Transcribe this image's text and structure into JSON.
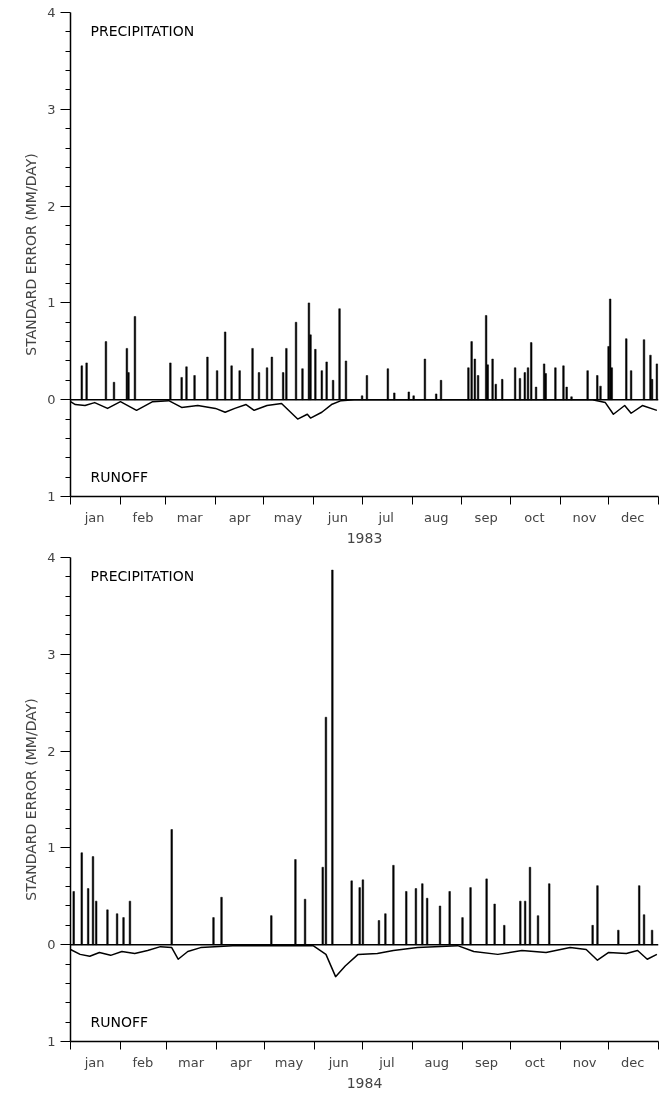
{
  "chart_data": [
    {
      "type": "bar",
      "xlabel": "1983",
      "ylabel": "STANDARD ERROR (MM/DAY)",
      "xlim": [
        "1983-01-01",
        "1984-01-01"
      ],
      "ylim": [
        -1,
        4
      ],
      "xticks": [
        {
          "value": "1983-01-01",
          "label": null
        },
        {
          "value": "1983-01-16",
          "label": "jan"
        },
        {
          "value": "1983-02-01",
          "label": null
        },
        {
          "value": "1983-02-15",
          "label": "feb"
        },
        {
          "value": "1983-03-01",
          "label": null
        },
        {
          "value": "1983-03-16",
          "label": "mar"
        },
        {
          "value": "1983-04-01",
          "label": null
        },
        {
          "value": "1983-04-16",
          "label": "apr"
        },
        {
          "value": "1983-05-01",
          "label": null
        },
        {
          "value": "1983-05-16",
          "label": "may"
        },
        {
          "value": "1983-06-01",
          "label": null
        },
        {
          "value": "1983-06-16",
          "label": "jun"
        },
        {
          "value": "1983-07-01",
          "label": null
        },
        {
          "value": "1983-07-16",
          "label": "jul"
        },
        {
          "value": "1983-08-01",
          "label": null
        },
        {
          "value": "1983-08-16",
          "label": "aug"
        },
        {
          "value": "1983-09-01",
          "label": null
        },
        {
          "value": "1983-09-16",
          "label": "sep"
        },
        {
          "value": "1983-10-01",
          "label": null
        },
        {
          "value": "1983-10-16",
          "label": "oct"
        },
        {
          "value": "1983-11-01",
          "label": null
        },
        {
          "value": "1983-11-16",
          "label": "nov"
        },
        {
          "value": "1983-12-01",
          "label": null
        },
        {
          "value": "1983-12-16",
          "label": "dec"
        },
        {
          "value": "1984-01-01",
          "label": null
        }
      ],
      "yticks": [
        {
          "value": -1,
          "label": "1"
        },
        {
          "value": -0.8,
          "label": null
        },
        {
          "value": -0.6,
          "label": null
        },
        {
          "value": -0.4,
          "label": null
        },
        {
          "value": -0.2,
          "label": null
        },
        0,
        {
          "value": 0.2,
          "label": null
        },
        {
          "value": 0.4,
          "label": null
        },
        {
          "value": 0.6,
          "label": null
        },
        {
          "value": 0.8,
          "label": null
        },
        1,
        {
          "value": 1.2,
          "label": null
        },
        {
          "value": 1.4,
          "label": null
        },
        {
          "value": 1.6,
          "label": null
        },
        {
          "value": 1.8,
          "label": null
        },
        2,
        {
          "value": 2.2,
          "label": null
        },
        {
          "value": 2.4,
          "label": null
        },
        {
          "value": 2.6,
          "label": null
        },
        {
          "value": 2.8,
          "label": null
        },
        3,
        {
          "value": 3.2,
          "label": null
        },
        {
          "value": 3.4,
          "label": null
        },
        {
          "value": 3.6,
          "label": null
        },
        {
          "value": 3.8,
          "label": null
        },
        4
      ],
      "ref_lines": [
        {
          "axis": "y",
          "value": 0,
          "color": "#000000"
        }
      ],
      "grid": false,
      "annotations": [
        "PRECIPITATION",
        "RUNOFF"
      ],
      "series": [
        {
          "color": "#000000",
          "x": [
            "1983-01-08",
            "1983-01-11",
            "1983-01-23",
            "1983-01-28",
            "1983-02-05",
            "1983-02-06",
            "1983-02-10",
            "1983-03-04",
            "1983-03-11",
            "1983-03-14",
            "1983-03-19",
            "1983-03-27",
            "1983-04-02",
            "1983-04-07",
            "1983-04-11",
            "1983-04-16",
            "1983-04-24",
            "1983-04-28",
            "1983-05-03",
            "1983-05-06",
            "1983-05-13",
            "1983-05-15",
            "1983-05-21",
            "1983-05-25",
            "1983-05-29",
            "1983-05-30",
            "1983-06-02",
            "1983-06-06",
            "1983-06-09",
            "1983-06-13",
            "1983-06-17",
            "1983-06-21",
            "1983-07-01",
            "1983-07-04",
            "1983-07-17",
            "1983-07-21",
            "1983-07-30",
            "1983-08-02",
            "1983-08-09",
            "1983-08-16",
            "1983-08-19",
            "1983-09-05",
            "1983-09-07",
            "1983-09-09",
            "1983-09-11",
            "1983-09-16",
            "1983-09-17",
            "1983-09-20",
            "1983-09-22",
            "1983-09-26",
            "1983-10-04",
            "1983-10-07",
            "1983-10-10",
            "1983-10-12",
            "1983-10-14",
            "1983-10-17",
            "1983-10-22",
            "1983-10-23",
            "1983-10-29",
            "1983-11-03",
            "1983-11-05",
            "1983-11-08",
            "1983-11-18",
            "1983-11-24",
            "1983-11-26",
            "1983-12-01",
            "1983-12-02",
            "1983-12-03",
            "1983-12-12",
            "1983-12-15",
            "1983-12-23",
            "1983-12-27",
            "1983-12-28",
            "1983-12-31"
          ],
          "values": [
            0.35,
            0.38,
            0.6,
            0.18,
            0.53,
            0.28,
            0.86,
            0.38,
            0.23,
            0.34,
            0.25,
            0.44,
            0.3,
            0.7,
            0.35,
            0.3,
            0.53,
            0.28,
            0.33,
            0.44,
            0.28,
            0.53,
            0.8,
            0.32,
            1.0,
            0.67,
            0.52,
            0.3,
            0.39,
            0.2,
            0.94,
            0.4,
            0.04,
            0.25,
            0.32,
            0.07,
            0.08,
            0.04,
            0.42,
            0.06,
            0.2,
            0.33,
            0.6,
            0.42,
            0.25,
            0.87,
            0.36,
            0.42,
            0.16,
            0.21,
            0.33,
            0.22,
            0.28,
            0.33,
            0.59,
            0.13,
            0.37,
            0.27,
            0.33,
            0.35,
            0.13,
            0.03,
            0.3,
            0.25,
            0.14,
            0.55,
            1.04,
            0.33,
            0.63,
            0.3,
            0.62,
            0.46,
            0.21,
            0.37
          ]
        },
        {
          "type": "line",
          "color": "#000000",
          "x": [
            "1983-01-01",
            "1983-01-04",
            "1983-01-10",
            "1983-01-16",
            "1983-01-24",
            "1983-02-01",
            "1983-02-11",
            "1983-02-21",
            "1983-03-03",
            "1983-03-11",
            "1983-03-21",
            "1983-04-01",
            "1983-04-07",
            "1983-04-13",
            "1983-04-20",
            "1983-04-25",
            "1983-05-03",
            "1983-05-12",
            "1983-05-22",
            "1983-05-28",
            "1983-05-30",
            "1983-06-06",
            "1983-06-12",
            "1983-06-18",
            "1983-06-26",
            "1983-11-21",
            "1983-11-29",
            "1983-12-04",
            "1983-12-11",
            "1983-12-15",
            "1983-12-22",
            "1983-12-31"
          ],
          "values": [
            -0.02,
            -0.05,
            -0.06,
            -0.03,
            -0.09,
            -0.02,
            -0.11,
            -0.02,
            -0.01,
            -0.08,
            -0.06,
            -0.09,
            -0.13,
            -0.09,
            -0.05,
            -0.11,
            -0.06,
            -0.04,
            -0.2,
            -0.15,
            -0.19,
            -0.13,
            -0.05,
            -0.01,
            0,
            0,
            -0.03,
            -0.15,
            -0.06,
            -0.14,
            -0.06,
            -0.11
          ]
        }
      ]
    },
    {
      "type": "bar",
      "xlabel": "1984",
      "ylabel": "STANDARD ERROR (MM/DAY)",
      "xlim": [
        "1984-01-01",
        "1985-01-01"
      ],
      "ylim": [
        -1,
        4
      ],
      "xticks": [
        {
          "value": "1984-01-01",
          "label": null
        },
        {
          "value": "1984-01-16",
          "label": "jan"
        },
        {
          "value": "1984-02-01",
          "label": null
        },
        {
          "value": "1984-02-15",
          "label": "feb"
        },
        {
          "value": "1984-03-01",
          "label": null
        },
        {
          "value": "1984-03-16",
          "label": "mar"
        },
        {
          "value": "1984-04-01",
          "label": null
        },
        {
          "value": "1984-04-16",
          "label": "apr"
        },
        {
          "value": "1984-05-01",
          "label": null
        },
        {
          "value": "1984-05-16",
          "label": "may"
        },
        {
          "value": "1984-06-01",
          "label": null
        },
        {
          "value": "1984-06-16",
          "label": "jun"
        },
        {
          "value": "1984-07-01",
          "label": null
        },
        {
          "value": "1984-07-16",
          "label": "jul"
        },
        {
          "value": "1984-08-01",
          "label": null
        },
        {
          "value": "1984-08-16",
          "label": "aug"
        },
        {
          "value": "1984-09-01",
          "label": null
        },
        {
          "value": "1984-09-16",
          "label": "sep"
        },
        {
          "value": "1984-10-01",
          "label": null
        },
        {
          "value": "1984-10-16",
          "label": "oct"
        },
        {
          "value": "1984-11-01",
          "label": null
        },
        {
          "value": "1984-11-16",
          "label": "nov"
        },
        {
          "value": "1984-12-01",
          "label": null
        },
        {
          "value": "1984-12-16",
          "label": "dec"
        },
        {
          "value": "1985-01-01",
          "label": null
        }
      ],
      "yticks": [
        {
          "value": -1,
          "label": "1"
        },
        {
          "value": -0.8,
          "label": null
        },
        {
          "value": -0.6,
          "label": null
        },
        {
          "value": -0.4,
          "label": null
        },
        {
          "value": -0.2,
          "label": null
        },
        0,
        {
          "value": 0.2,
          "label": null
        },
        {
          "value": 0.4,
          "label": null
        },
        {
          "value": 0.6,
          "label": null
        },
        {
          "value": 0.8,
          "label": null
        },
        1,
        {
          "value": 1.2,
          "label": null
        },
        {
          "value": 1.4,
          "label": null
        },
        {
          "value": 1.6,
          "label": null
        },
        {
          "value": 1.8,
          "label": null
        },
        2,
        {
          "value": 2.2,
          "label": null
        },
        {
          "value": 2.4,
          "label": null
        },
        {
          "value": 2.6,
          "label": null
        },
        {
          "value": 2.8,
          "label": null
        },
        3,
        {
          "value": 3.2,
          "label": null
        },
        {
          "value": 3.4,
          "label": null
        },
        {
          "value": 3.6,
          "label": null
        },
        {
          "value": 3.8,
          "label": null
        },
        4
      ],
      "ref_lines": [
        {
          "axis": "y",
          "value": 0,
          "color": "#000000"
        }
      ],
      "grid": false,
      "annotations": [
        "PRECIPITATION",
        "RUNOFF"
      ],
      "series": [
        {
          "color": "#000000",
          "x": [
            "1984-01-03",
            "1984-01-08",
            "1984-01-12",
            "1984-01-15",
            "1984-01-17",
            "1984-01-24",
            "1984-01-30",
            "1984-02-03",
            "1984-02-07",
            "1984-03-04",
            "1984-03-30",
            "1984-04-04",
            "1984-05-05",
            "1984-05-20",
            "1984-05-26",
            "1984-06-06",
            "1984-06-08",
            "1984-06-12",
            "1984-06-24",
            "1984-06-29",
            "1984-07-01",
            "1984-07-11",
            "1984-07-15",
            "1984-07-20",
            "1984-07-28",
            "1984-08-03",
            "1984-08-07",
            "1984-08-10",
            "1984-08-18",
            "1984-08-24",
            "1984-09-01",
            "1984-09-06",
            "1984-09-16",
            "1984-09-21",
            "1984-09-27",
            "1984-10-07",
            "1984-10-10",
            "1984-10-13",
            "1984-10-18",
            "1984-10-25",
            "1984-11-21",
            "1984-11-24",
            "1984-12-07",
            "1984-12-20",
            "1984-12-23",
            "1984-12-28"
          ],
          "values": [
            0.55,
            0.95,
            0.58,
            0.91,
            0.45,
            0.36,
            0.32,
            0.28,
            0.45,
            1.19,
            0.28,
            0.49,
            0.3,
            0.88,
            0.47,
            0.8,
            2.35,
            3.87,
            0.66,
            0.59,
            0.67,
            0.25,
            0.32,
            0.82,
            0.55,
            0.58,
            0.63,
            0.48,
            0.4,
            0.55,
            0.28,
            0.59,
            0.68,
            0.42,
            0.2,
            0.45,
            0.45,
            0.8,
            0.3,
            0.63,
            0.2,
            0.61,
            0.15,
            0.61,
            0.31,
            0.15
          ]
        },
        {
          "type": "line",
          "color": "#000000",
          "x": [
            "1984-01-01",
            "1984-01-07",
            "1984-01-13",
            "1984-01-19",
            "1984-01-26",
            "1984-02-02",
            "1984-02-10",
            "1984-02-18",
            "1984-02-26",
            "1984-03-04",
            "1984-03-08",
            "1984-03-14",
            "1984-03-22",
            "1984-04-11",
            "1984-05-31",
            "1984-06-08",
            "1984-06-14",
            "1984-06-20",
            "1984-06-28",
            "1984-07-10",
            "1984-07-20",
            "1984-08-04",
            "1984-08-29",
            "1984-09-08",
            "1984-09-23",
            "1984-10-08",
            "1984-10-23",
            "1984-11-07",
            "1984-11-17",
            "1984-11-24",
            "1984-12-01",
            "1984-12-12",
            "1984-12-19",
            "1984-12-25",
            "1984-12-31"
          ],
          "values": [
            -0.05,
            -0.1,
            -0.12,
            -0.08,
            -0.11,
            -0.07,
            -0.09,
            -0.06,
            -0.02,
            -0.03,
            -0.15,
            -0.07,
            -0.03,
            -0.01,
            -0.01,
            -0.1,
            -0.33,
            -0.22,
            -0.1,
            -0.09,
            -0.06,
            -0.03,
            -0.01,
            -0.07,
            -0.1,
            -0.06,
            -0.08,
            -0.03,
            -0.05,
            -0.16,
            -0.08,
            -0.09,
            -0.06,
            -0.15,
            -0.1
          ]
        }
      ]
    }
  ]
}
